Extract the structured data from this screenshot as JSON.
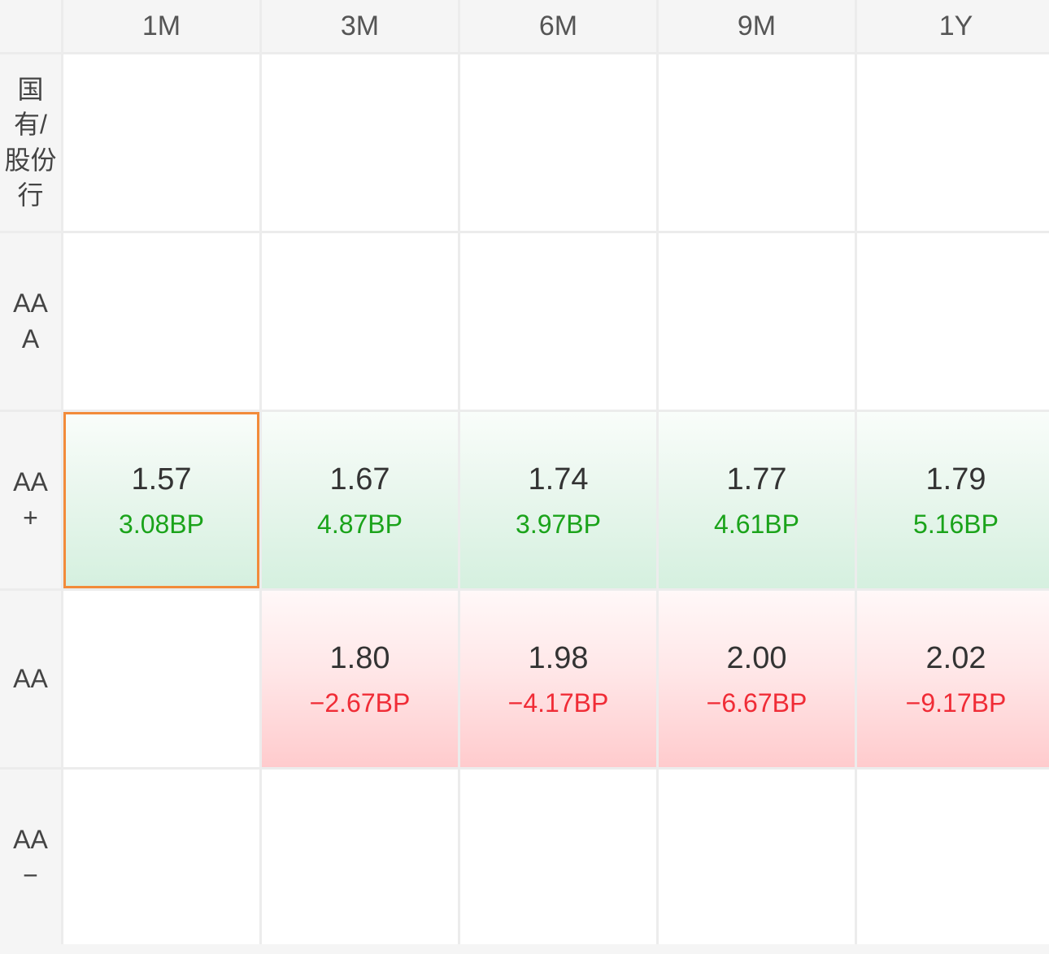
{
  "columns": [
    "1M",
    "3M",
    "6M",
    "9M",
    "1Y"
  ],
  "rows": [
    {
      "label_lines": [
        "国",
        "有/",
        "股份",
        "行"
      ],
      "cells": [
        null,
        null,
        null,
        null,
        null
      ]
    },
    {
      "label_lines": [
        "AA",
        "A"
      ],
      "cells": [
        null,
        null,
        null,
        null,
        null
      ]
    },
    {
      "label_lines": [
        "AA",
        "+"
      ],
      "cells": [
        {
          "value": "1.57",
          "change": "3.08BP",
          "trend": "up",
          "selected": true
        },
        {
          "value": "1.67",
          "change": "4.87BP",
          "trend": "up"
        },
        {
          "value": "1.74",
          "change": "3.97BP",
          "trend": "up"
        },
        {
          "value": "1.77",
          "change": "4.61BP",
          "trend": "up"
        },
        {
          "value": "1.79",
          "change": "5.16BP",
          "trend": "up"
        }
      ]
    },
    {
      "label_lines": [
        "AA"
      ],
      "cells": [
        null,
        {
          "value": "1.80",
          "change": "−2.67BP",
          "trend": "down"
        },
        {
          "value": "1.98",
          "change": "−4.17BP",
          "trend": "down"
        },
        {
          "value": "2.00",
          "change": "−6.67BP",
          "trend": "down"
        },
        {
          "value": "2.02",
          "change": "−9.17BP",
          "trend": "down"
        }
      ]
    },
    {
      "label_lines": [
        "AA",
        "−"
      ],
      "cells": [
        null,
        null,
        null,
        null,
        null
      ]
    }
  ],
  "colors": {
    "up_text": "#1aa31a",
    "down_text": "#f02c36",
    "selected_border": "#f28b3a"
  }
}
